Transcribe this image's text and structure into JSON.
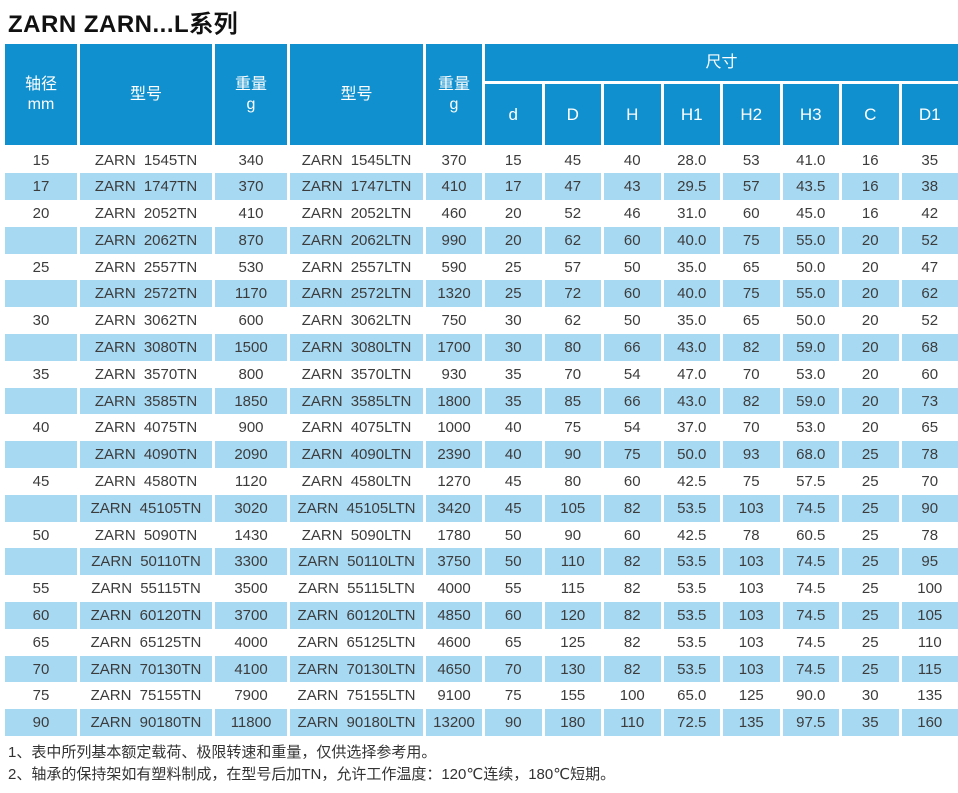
{
  "title": "ZARN ZARN...L系列",
  "table": {
    "header": {
      "shaft_line1": "轴径",
      "shaft_line2": "mm",
      "model_label": "型号",
      "weight_label": "重量",
      "weight_unit": "g",
      "dims_group_label": "尺寸",
      "dim_cols": [
        "d",
        "D",
        "H",
        "H1",
        "H2",
        "H3",
        "C",
        "D1"
      ]
    },
    "rows": [
      [
        "15",
        "ZARN 1545TN",
        "340",
        "ZARN 1545LTN",
        "370",
        "15",
        "45",
        "40",
        "28.0",
        "53",
        "41.0",
        "16",
        "35"
      ],
      [
        "17",
        "ZARN 1747TN",
        "370",
        "ZARN 1747LTN",
        "410",
        "17",
        "47",
        "43",
        "29.5",
        "57",
        "43.5",
        "16",
        "38"
      ],
      [
        "20",
        "ZARN 2052TN",
        "410",
        "ZARN 2052LTN",
        "460",
        "20",
        "52",
        "46",
        "31.0",
        "60",
        "45.0",
        "16",
        "42"
      ],
      [
        "",
        "ZARN 2062TN",
        "870",
        "ZARN 2062LTN",
        "990",
        "20",
        "62",
        "60",
        "40.0",
        "75",
        "55.0",
        "20",
        "52"
      ],
      [
        "25",
        "ZARN 2557TN",
        "530",
        "ZARN 2557LTN",
        "590",
        "25",
        "57",
        "50",
        "35.0",
        "65",
        "50.0",
        "20",
        "47"
      ],
      [
        "",
        "ZARN 2572TN",
        "1170",
        "ZARN 2572LTN",
        "1320",
        "25",
        "72",
        "60",
        "40.0",
        "75",
        "55.0",
        "20",
        "62"
      ],
      [
        "30",
        "ZARN 3062TN",
        "600",
        "ZARN 3062LTN",
        "750",
        "30",
        "62",
        "50",
        "35.0",
        "65",
        "50.0",
        "20",
        "52"
      ],
      [
        "",
        "ZARN 3080TN",
        "1500",
        "ZARN 3080LTN",
        "1700",
        "30",
        "80",
        "66",
        "43.0",
        "82",
        "59.0",
        "20",
        "68"
      ],
      [
        "35",
        "ZARN 3570TN",
        "800",
        "ZARN 3570LTN",
        "930",
        "35",
        "70",
        "54",
        "47.0",
        "70",
        "53.0",
        "20",
        "60"
      ],
      [
        "",
        "ZARN 3585TN",
        "1850",
        "ZARN 3585LTN",
        "1800",
        "35",
        "85",
        "66",
        "43.0",
        "82",
        "59.0",
        "20",
        "73"
      ],
      [
        "40",
        "ZARN 4075TN",
        "900",
        "ZARN 4075LTN",
        "1000",
        "40",
        "75",
        "54",
        "37.0",
        "70",
        "53.0",
        "20",
        "65"
      ],
      [
        "",
        "ZARN 4090TN",
        "2090",
        "ZARN 4090LTN",
        "2390",
        "40",
        "90",
        "75",
        "50.0",
        "93",
        "68.0",
        "25",
        "78"
      ],
      [
        "45",
        "ZARN 4580TN",
        "1120",
        "ZARN 4580LTN",
        "1270",
        "45",
        "80",
        "60",
        "42.5",
        "75",
        "57.5",
        "25",
        "70"
      ],
      [
        "",
        "ZARN 45105TN",
        "3020",
        "ZARN 45105LTN",
        "3420",
        "45",
        "105",
        "82",
        "53.5",
        "103",
        "74.5",
        "25",
        "90"
      ],
      [
        "50",
        "ZARN 5090TN",
        "1430",
        "ZARN 5090LTN",
        "1780",
        "50",
        "90",
        "60",
        "42.5",
        "78",
        "60.5",
        "25",
        "78"
      ],
      [
        "",
        "ZARN 50110TN",
        "3300",
        "ZARN 50110LTN",
        "3750",
        "50",
        "110",
        "82",
        "53.5",
        "103",
        "74.5",
        "25",
        "95"
      ],
      [
        "55",
        "ZARN 55115TN",
        "3500",
        "ZARN 55115LTN",
        "4000",
        "55",
        "115",
        "82",
        "53.5",
        "103",
        "74.5",
        "25",
        "100"
      ],
      [
        "60",
        "ZARN 60120TN",
        "3700",
        "ZARN 60120LTN",
        "4850",
        "60",
        "120",
        "82",
        "53.5",
        "103",
        "74.5",
        "25",
        "105"
      ],
      [
        "65",
        "ZARN 65125TN",
        "4000",
        "ZARN 65125LTN",
        "4600",
        "65",
        "125",
        "82",
        "53.5",
        "103",
        "74.5",
        "25",
        "110"
      ],
      [
        "70",
        "ZARN 70130TN",
        "4100",
        "ZARN 70130LTN",
        "4650",
        "70",
        "130",
        "82",
        "53.5",
        "103",
        "74.5",
        "25",
        "115"
      ],
      [
        "75",
        "ZARN 75155TN",
        "7900",
        "ZARN 75155LTN",
        "9100",
        "75",
        "155",
        "100",
        "65.0",
        "125",
        "90.0",
        "30",
        "135"
      ],
      [
        "90",
        "ZARN 90180TN",
        "11800",
        "ZARN 90180LTN",
        "13200",
        "90",
        "180",
        "110",
        "72.5",
        "135",
        "97.5",
        "35",
        "160"
      ]
    ]
  },
  "notes": [
    "1、表中所列基本额定载荷、极限转速和重量，仅供选择参考用。",
    "2、轴承的保持架如有塑料制成，在型号后加TN，允许工作温度：120℃连续，180℃短期。"
  ],
  "colors": {
    "header_bg": "#1090CE",
    "row_alt_bg": "#A8D9F2",
    "header_text": "#FFFFFF",
    "body_text": "#3C3C3C"
  }
}
